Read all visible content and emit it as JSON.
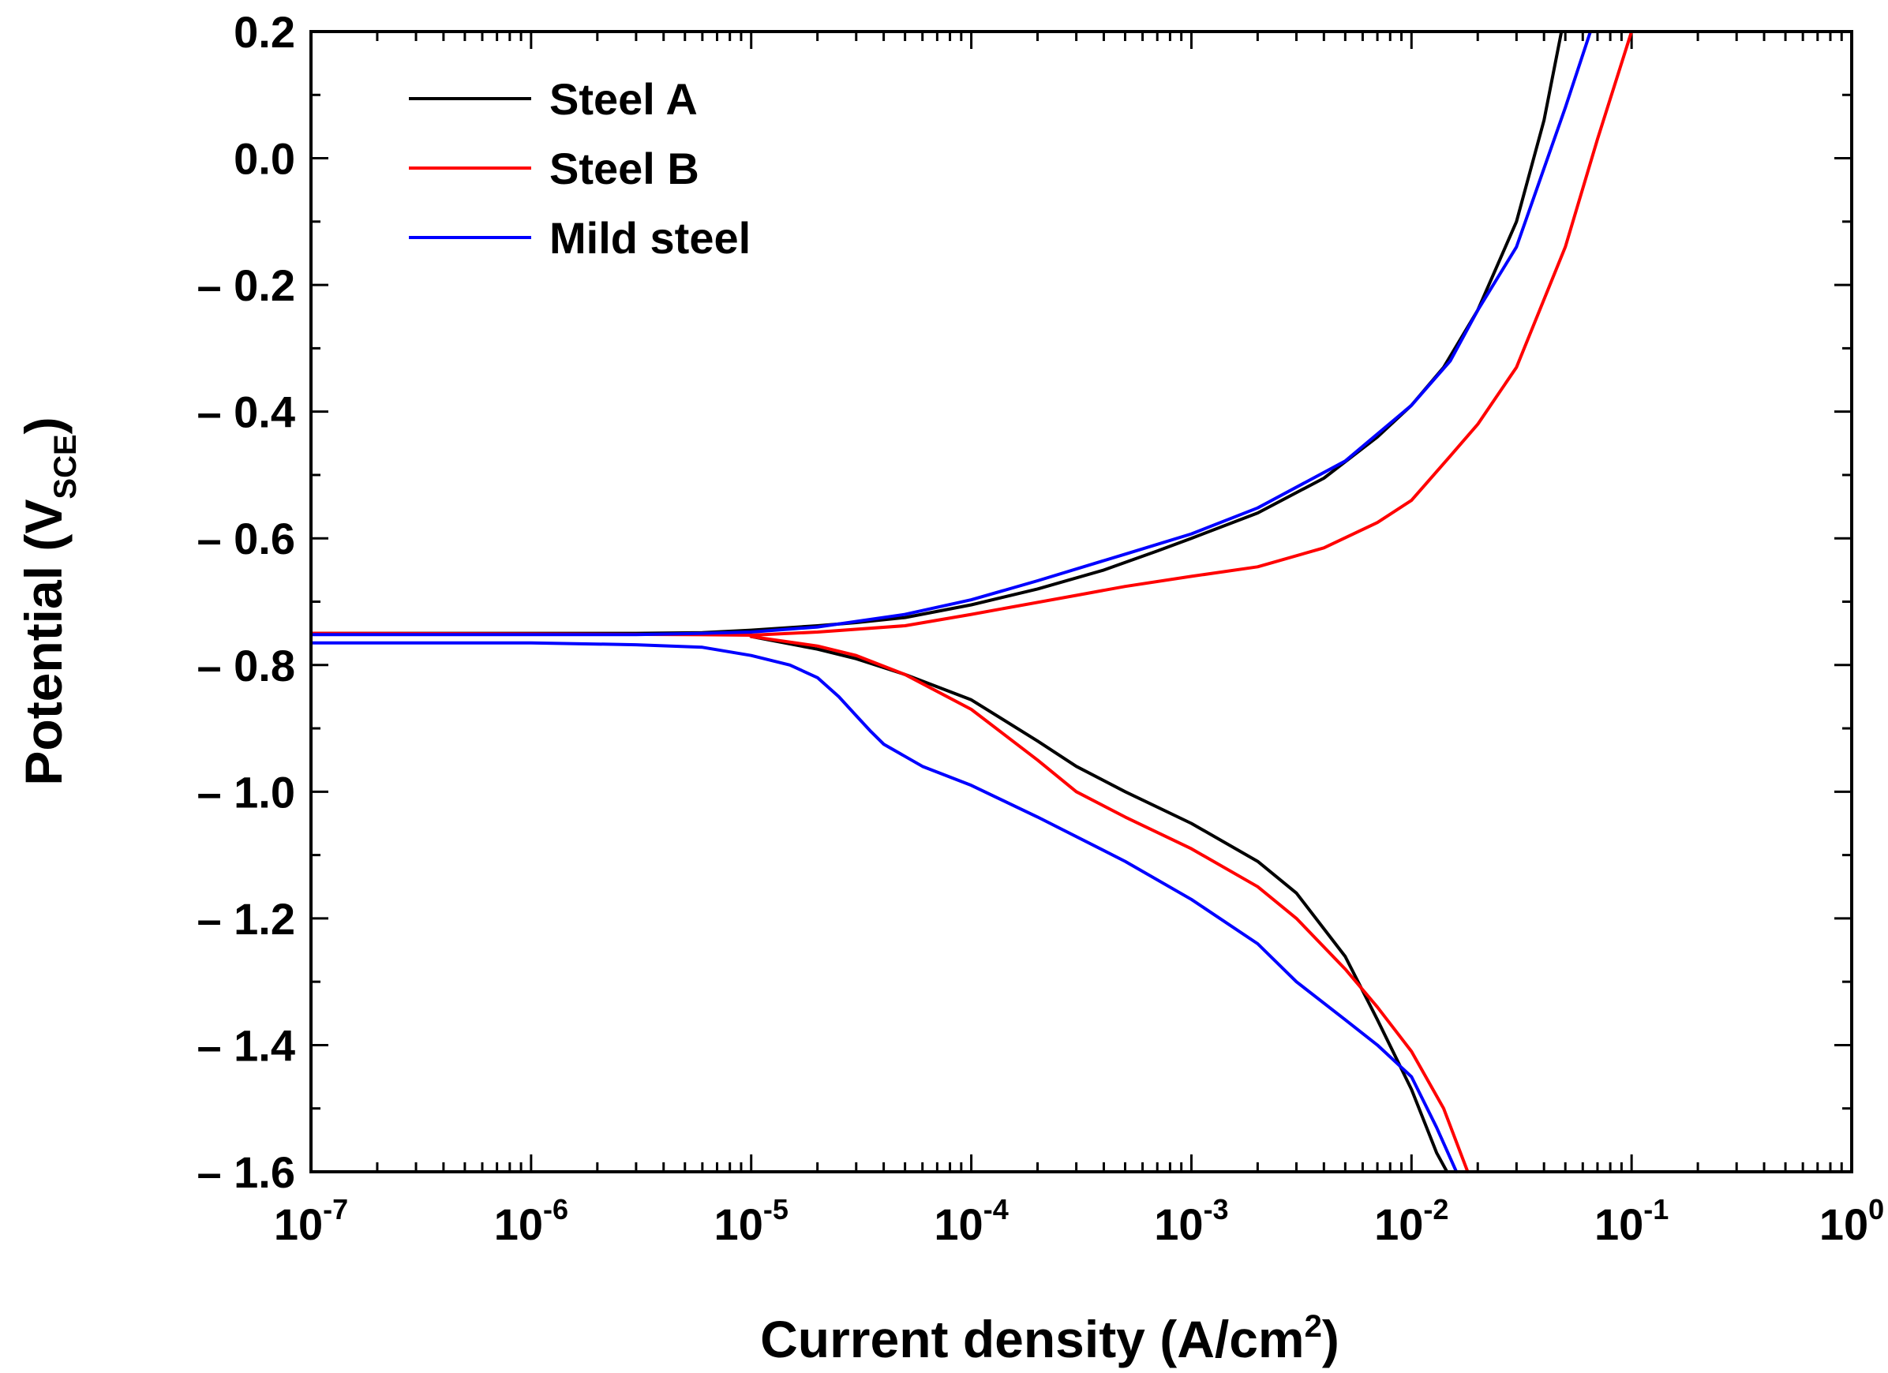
{
  "chart_data": {
    "type": "line",
    "title": "",
    "xlabel": "Current density (A/cm",
    "xlabel_sup": "2",
    "xlabel_close": ")",
    "ylabel": "Potential (V",
    "ylabel_sub": "SCE",
    "ylabel_close": ")",
    "xscale": "log",
    "xlim": [
      1e-07,
      1
    ],
    "ylim": [
      -1.6,
      0.2
    ],
    "x_ticks": [
      {
        "base": "10",
        "exp": "-7",
        "value": 1e-07
      },
      {
        "base": "10",
        "exp": "-6",
        "value": 1e-06
      },
      {
        "base": "10",
        "exp": "-5",
        "value": 1e-05
      },
      {
        "base": "10",
        "exp": "-4",
        "value": 0.0001
      },
      {
        "base": "10",
        "exp": "-3",
        "value": 0.001
      },
      {
        "base": "10",
        "exp": "-2",
        "value": 0.01
      },
      {
        "base": "10",
        "exp": "-1",
        "value": 0.1
      },
      {
        "base": "10",
        "exp": "0",
        "value": 1
      }
    ],
    "y_ticks": [
      {
        "label": "0.2",
        "value": 0.2
      },
      {
        "label": "0.0",
        "value": 0.0
      },
      {
        "label": "– 0.2",
        "value": -0.2
      },
      {
        "label": "– 0.4",
        "value": -0.4
      },
      {
        "label": "– 0.6",
        "value": -0.6
      },
      {
        "label": "– 0.8",
        "value": -0.8
      },
      {
        "label": "– 1.0",
        "value": -1.0
      },
      {
        "label": "– 1.2",
        "value": -1.2
      },
      {
        "label": "– 1.4",
        "value": -1.4
      },
      {
        "label": "– 1.6",
        "value": -1.6
      }
    ],
    "legend_position": "top-left",
    "series": [
      {
        "name": "Steel A",
        "color": "#000000",
        "branches": [
          {
            "x": [
              1e-07,
              1e-06,
              3e-06,
              6e-06,
              1e-05,
              2e-05,
              3e-05,
              5e-05,
              0.0001,
              0.0002,
              0.0004,
              0.0007,
              0.001,
              0.002,
              0.004,
              0.007,
              0.01,
              0.014,
              0.02,
              0.03,
              0.04,
              0.048
            ],
            "y": [
              -0.75,
              -0.75,
              -0.75,
              -0.749,
              -0.745,
              -0.738,
              -0.733,
              -0.725,
              -0.705,
              -0.68,
              -0.65,
              -0.62,
              -0.6,
              -0.56,
              -0.505,
              -0.44,
              -0.39,
              -0.33,
              -0.24,
              -0.1,
              0.06,
              0.2
            ]
          },
          {
            "x": [
              1e-05,
              2e-05,
              3e-05,
              5e-05,
              0.0001,
              0.0002,
              0.0003,
              0.0005,
              0.001,
              0.002,
              0.003,
              0.005,
              0.007,
              0.01,
              0.013,
              0.0145
            ],
            "y": [
              -0.755,
              -0.775,
              -0.79,
              -0.815,
              -0.855,
              -0.92,
              -0.96,
              -1.0,
              -1.05,
              -1.11,
              -1.16,
              -1.26,
              -1.36,
              -1.47,
              -1.57,
              -1.6
            ]
          }
        ]
      },
      {
        "name": "Steel B",
        "color": "#ff0000",
        "branches": [
          {
            "x": [
              1e-07,
              1e-06,
              5e-06,
              1e-05,
              2e-05,
              5e-05,
              0.0001,
              0.0003,
              0.0005,
              0.001,
              0.002,
              0.004,
              0.007,
              0.01,
              0.015,
              0.02,
              0.03,
              0.05,
              0.07,
              0.1
            ],
            "y": [
              -0.75,
              -0.751,
              -0.752,
              -0.753,
              -0.748,
              -0.738,
              -0.72,
              -0.69,
              -0.676,
              -0.66,
              -0.645,
              -0.615,
              -0.575,
              -0.54,
              -0.47,
              -0.42,
              -0.33,
              -0.14,
              0.03,
              0.2
            ]
          },
          {
            "x": [
              1e-05,
              2e-05,
              3e-05,
              5e-05,
              0.0001,
              0.0002,
              0.0003,
              0.0005,
              0.001,
              0.002,
              0.003,
              0.005,
              0.007,
              0.01,
              0.014,
              0.018
            ],
            "y": [
              -0.755,
              -0.77,
              -0.785,
              -0.815,
              -0.87,
              -0.95,
              -1.0,
              -1.04,
              -1.09,
              -1.15,
              -1.2,
              -1.28,
              -1.34,
              -1.41,
              -1.5,
              -1.6
            ]
          }
        ]
      },
      {
        "name": "Mild steel",
        "color": "#0000ff",
        "branches": [
          {
            "x": [
              1e-07,
              1e-06,
              3e-06,
              6e-06,
              1e-05,
              2e-05,
              5e-05,
              0.0001,
              0.0002,
              0.0005,
              0.001,
              0.002,
              0.005,
              0.01,
              0.015,
              0.02,
              0.03,
              0.05,
              0.065
            ],
            "y": [
              -0.752,
              -0.752,
              -0.752,
              -0.75,
              -0.748,
              -0.74,
              -0.72,
              -0.697,
              -0.667,
              -0.625,
              -0.593,
              -0.552,
              -0.478,
              -0.39,
              -0.32,
              -0.24,
              -0.14,
              0.08,
              0.2
            ]
          },
          {
            "x": [
              1e-07,
              1e-06,
              3e-06,
              6e-06,
              1e-05,
              1.5e-05,
              2e-05,
              2.5e-05,
              3e-05,
              3.5e-05,
              4e-05,
              6e-05,
              0.0001,
              0.0002,
              0.0005,
              0.001,
              0.002,
              0.003,
              0.005,
              0.007,
              0.01,
              0.013,
              0.016
            ],
            "y": [
              -0.765,
              -0.765,
              -0.768,
              -0.772,
              -0.785,
              -0.8,
              -0.82,
              -0.85,
              -0.88,
              -0.905,
              -0.925,
              -0.96,
              -0.99,
              -1.04,
              -1.11,
              -1.17,
              -1.24,
              -1.3,
              -1.36,
              -1.4,
              -1.45,
              -1.53,
              -1.6
            ]
          }
        ]
      }
    ]
  }
}
